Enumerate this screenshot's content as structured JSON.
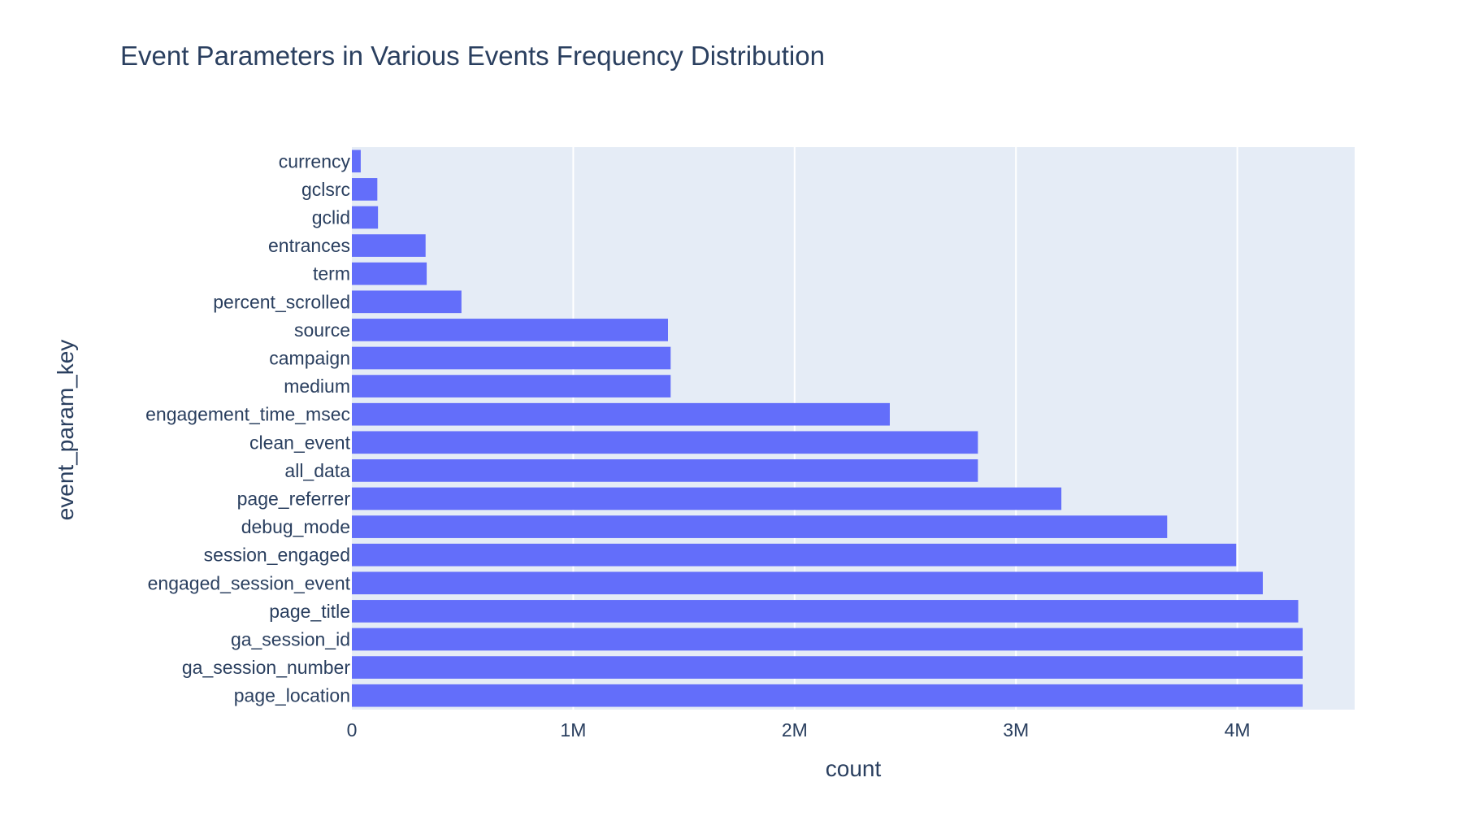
{
  "chart_data": {
    "type": "bar",
    "orientation": "horizontal",
    "title": "Event Parameters in Various Events Frequency Distribution",
    "xlabel": "count",
    "ylabel": "event_param_key",
    "xlim": [
      0,
      4530000
    ],
    "x_ticks": [
      {
        "value": 0,
        "label": "0"
      },
      {
        "value": 1000000,
        "label": "1M"
      },
      {
        "value": 2000000,
        "label": "2M"
      },
      {
        "value": 3000000,
        "label": "3M"
      },
      {
        "value": 4000000,
        "label": "4M"
      }
    ],
    "grid": true,
    "bar_color": "#636efa",
    "plot_background": "#e5ecf6",
    "categories": [
      "currency",
      "gclsrc",
      "gclid",
      "entrances",
      "term",
      "percent_scrolled",
      "source",
      "campaign",
      "medium",
      "engagement_time_msec",
      "clean_event",
      "all_data",
      "page_referrer",
      "debug_mode",
      "session_engaged",
      "engaged_session_event",
      "page_title",
      "ga_session_id",
      "ga_session_number",
      "page_location"
    ],
    "values": [
      40000,
      115000,
      118000,
      333000,
      338000,
      495000,
      1428000,
      1440000,
      1440000,
      2430000,
      2828000,
      2828000,
      3205000,
      3683000,
      3995000,
      4115000,
      4275000,
      4295000,
      4295000,
      4295000
    ]
  }
}
